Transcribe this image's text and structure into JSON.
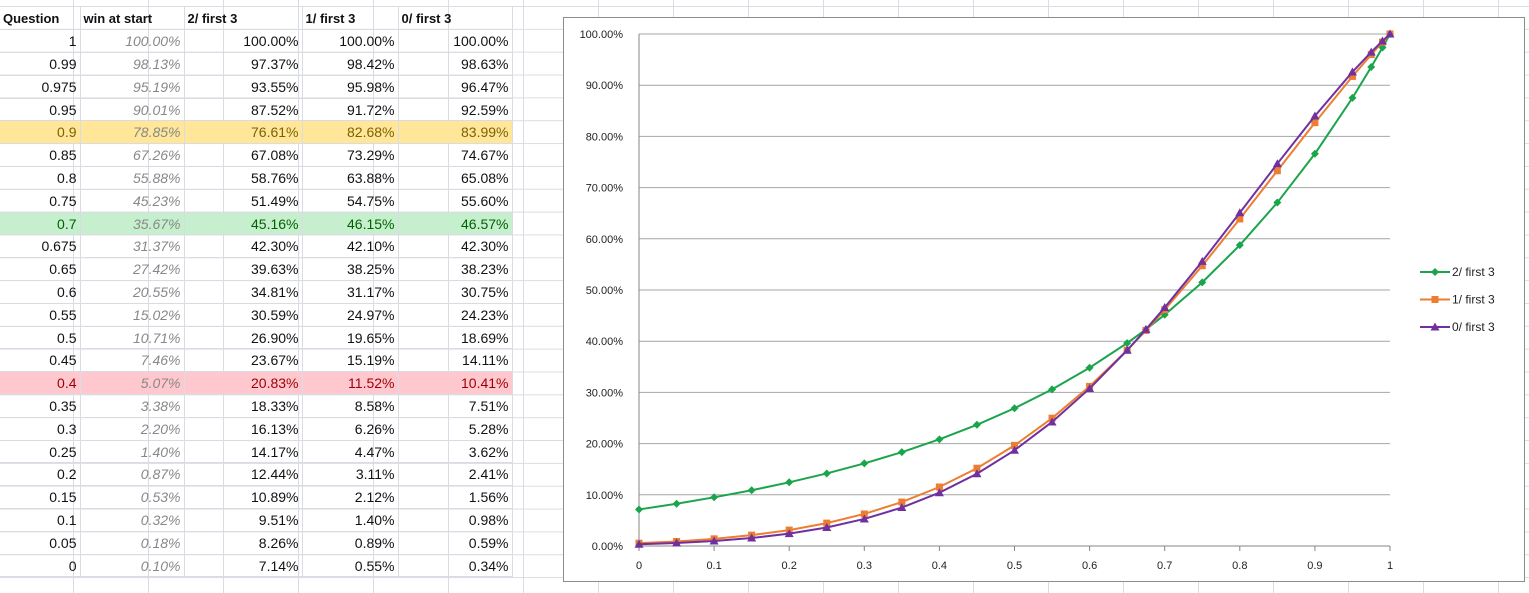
{
  "sheet": {
    "headers": [
      "Question",
      "win at start",
      "2/ first 3",
      "1/ first 3",
      "0/ first 3"
    ],
    "rows": [
      {
        "q": "1",
        "w": "100.00%",
        "a": "100.00%",
        "b": "100.00%",
        "c": "100.00%",
        "hl": ""
      },
      {
        "q": "0.99",
        "w": "98.13%",
        "a": "97.37%",
        "b": "98.42%",
        "c": "98.63%",
        "hl": ""
      },
      {
        "q": "0.975",
        "w": "95.19%",
        "a": "93.55%",
        "b": "95.98%",
        "c": "96.47%",
        "hl": ""
      },
      {
        "q": "0.95",
        "w": "90.01%",
        "a": "87.52%",
        "b": "91.72%",
        "c": "92.59%",
        "hl": ""
      },
      {
        "q": "0.9",
        "w": "78.85%",
        "a": "76.61%",
        "b": "82.68%",
        "c": "83.99%",
        "hl": "yellow"
      },
      {
        "q": "0.85",
        "w": "67.26%",
        "a": "67.08%",
        "b": "73.29%",
        "c": "74.67%",
        "hl": ""
      },
      {
        "q": "0.8",
        "w": "55.88%",
        "a": "58.76%",
        "b": "63.88%",
        "c": "65.08%",
        "hl": ""
      },
      {
        "q": "0.75",
        "w": "45.23%",
        "a": "51.49%",
        "b": "54.75%",
        "c": "55.60%",
        "hl": ""
      },
      {
        "q": "0.7",
        "w": "35.67%",
        "a": "45.16%",
        "b": "46.15%",
        "c": "46.57%",
        "hl": "green"
      },
      {
        "q": "0.675",
        "w": "31.37%",
        "a": "42.30%",
        "b": "42.10%",
        "c": "42.30%",
        "hl": ""
      },
      {
        "q": "0.65",
        "w": "27.42%",
        "a": "39.63%",
        "b": "38.25%",
        "c": "38.23%",
        "hl": ""
      },
      {
        "q": "0.6",
        "w": "20.55%",
        "a": "34.81%",
        "b": "31.17%",
        "c": "30.75%",
        "hl": ""
      },
      {
        "q": "0.55",
        "w": "15.02%",
        "a": "30.59%",
        "b": "24.97%",
        "c": "24.23%",
        "hl": ""
      },
      {
        "q": "0.5",
        "w": "10.71%",
        "a": "26.90%",
        "b": "19.65%",
        "c": "18.69%",
        "hl": ""
      },
      {
        "q": "0.45",
        "w": "7.46%",
        "a": "23.67%",
        "b": "15.19%",
        "c": "14.11%",
        "hl": ""
      },
      {
        "q": "0.4",
        "w": "5.07%",
        "a": "20.83%",
        "b": "11.52%",
        "c": "10.41%",
        "hl": "red"
      },
      {
        "q": "0.35",
        "w": "3.38%",
        "a": "18.33%",
        "b": "8.58%",
        "c": "7.51%",
        "hl": ""
      },
      {
        "q": "0.3",
        "w": "2.20%",
        "a": "16.13%",
        "b": "6.26%",
        "c": "5.28%",
        "hl": ""
      },
      {
        "q": "0.25",
        "w": "1.40%",
        "a": "14.17%",
        "b": "4.47%",
        "c": "3.62%",
        "hl": ""
      },
      {
        "q": "0.2",
        "w": "0.87%",
        "a": "12.44%",
        "b": "3.11%",
        "c": "2.41%",
        "hl": ""
      },
      {
        "q": "0.15",
        "w": "0.53%",
        "a": "10.89%",
        "b": "2.12%",
        "c": "1.56%",
        "hl": ""
      },
      {
        "q": "0.1",
        "w": "0.32%",
        "a": "9.51%",
        "b": "1.40%",
        "c": "0.98%",
        "hl": ""
      },
      {
        "q": "0.05",
        "w": "0.18%",
        "a": "8.26%",
        "b": "0.89%",
        "c": "0.59%",
        "hl": ""
      },
      {
        "q": "0",
        "w": "0.10%",
        "a": "7.14%",
        "b": "0.55%",
        "c": "0.34%",
        "hl": ""
      }
    ]
  },
  "chart_data": {
    "type": "line",
    "title": "",
    "xlabel": "",
    "ylabel": "",
    "xlim": [
      0,
      1
    ],
    "ylim": [
      0,
      100
    ],
    "x_ticks": [
      "0",
      "0.1",
      "0.2",
      "0.3",
      "0.4",
      "0.5",
      "0.6",
      "0.7",
      "0.8",
      "0.9",
      "1"
    ],
    "y_ticks": [
      "0.00%",
      "10.00%",
      "20.00%",
      "30.00%",
      "40.00%",
      "50.00%",
      "60.00%",
      "70.00%",
      "80.00%",
      "90.00%",
      "100.00%"
    ],
    "grid": "horizontal",
    "legend_position": "right",
    "x": [
      0,
      0.05,
      0.1,
      0.15,
      0.2,
      0.25,
      0.3,
      0.35,
      0.4,
      0.45,
      0.5,
      0.55,
      0.6,
      0.65,
      0.675,
      0.7,
      0.75,
      0.8,
      0.85,
      0.9,
      0.95,
      0.975,
      0.99,
      1
    ],
    "series": [
      {
        "name": "2/ first 3",
        "color": "#1aa54b",
        "marker": "diamond",
        "values": [
          7.14,
          8.26,
          9.51,
          10.89,
          12.44,
          14.17,
          16.13,
          18.33,
          20.83,
          23.67,
          26.9,
          30.59,
          34.81,
          39.63,
          42.3,
          45.16,
          51.49,
          58.76,
          67.08,
          76.61,
          87.52,
          93.55,
          97.37,
          100.0
        ]
      },
      {
        "name": "1/ first 3",
        "color": "#ed7d31",
        "marker": "square",
        "values": [
          0.55,
          0.89,
          1.4,
          2.12,
          3.11,
          4.47,
          6.26,
          8.58,
          11.52,
          15.19,
          19.65,
          24.97,
          31.17,
          38.25,
          42.1,
          46.15,
          54.75,
          63.88,
          73.29,
          82.68,
          91.72,
          95.98,
          98.42,
          100.0
        ]
      },
      {
        "name": "0/ first 3",
        "color": "#7030a0",
        "marker": "triangle",
        "values": [
          0.34,
          0.59,
          0.98,
          1.56,
          2.41,
          3.62,
          5.28,
          7.51,
          10.41,
          14.11,
          18.69,
          24.23,
          30.75,
          38.23,
          42.3,
          46.57,
          55.6,
          65.08,
          74.67,
          83.99,
          92.59,
          96.47,
          98.63,
          100.0
        ]
      }
    ]
  }
}
